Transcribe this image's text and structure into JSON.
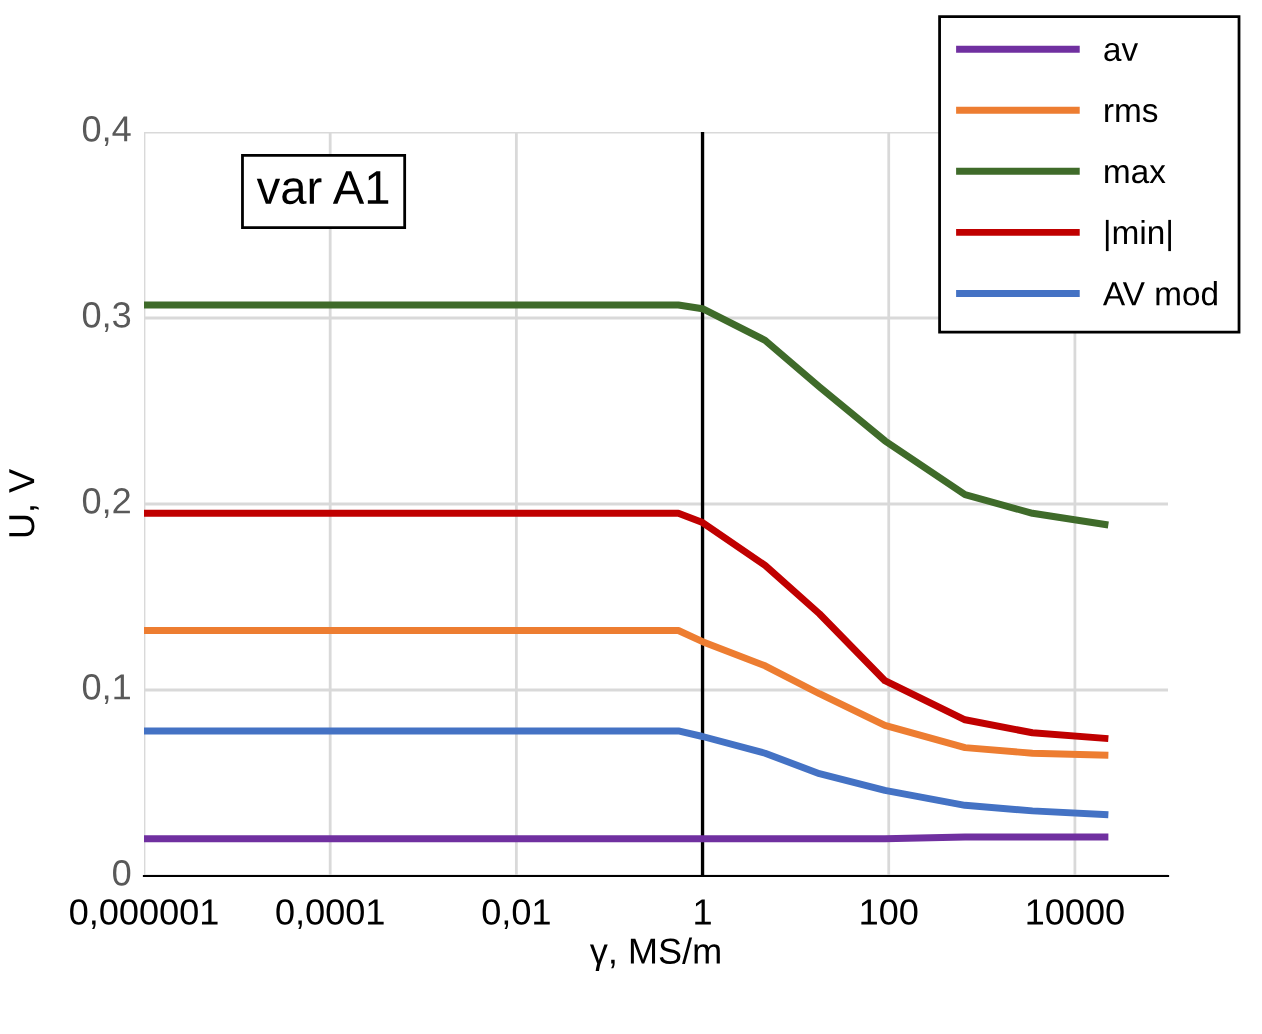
{
  "chart_data": {
    "type": "line",
    "xlabel": "γ, MS/m",
    "ylabel": "U, V",
    "annotations": [
      "var A1"
    ],
    "log": "x",
    "xlim": [
      1e-06,
      100000
    ],
    "ylim": [
      0,
      0.4
    ],
    "xticks": [
      {
        "value": 1e-06,
        "label": "0,000001"
      },
      {
        "value": 0.0001,
        "label": "0,0001"
      },
      {
        "value": 0.01,
        "label": "0,01"
      },
      1,
      100,
      10000
    ],
    "yticks": [
      0,
      {
        "value": 0.1,
        "label": "0,1"
      },
      {
        "value": 0.2,
        "label": "0,2"
      },
      {
        "value": 0.3,
        "label": "0,3"
      },
      {
        "value": 0.4,
        "label": "0,4"
      }
    ],
    "ref_lines": [
      {
        "axis": "x",
        "value": 1,
        "color": "#000000"
      }
    ],
    "grid": true,
    "legend": "top right",
    "marker": "none",
    "line_style": "solid",
    "x": [
      1e-06,
      0.1,
      0.55,
      1,
      4.7,
      18,
      91,
      660,
      3500,
      21000
    ],
    "series": [
      {
        "name": "av",
        "color": "#7030a0",
        "values": [
          0.02,
          0.02,
          0.02,
          0.02,
          0.02,
          0.02,
          0.02,
          0.021,
          0.021,
          0.021
        ]
      },
      {
        "name": "rms",
        "color": "#ed7d31",
        "values": [
          0.132,
          0.132,
          0.132,
          0.126,
          0.113,
          0.098,
          0.081,
          0.069,
          0.066,
          0.065
        ]
      },
      {
        "name": "max",
        "color": "#3f6b2a",
        "values": [
          0.307,
          0.307,
          0.307,
          0.305,
          0.288,
          0.263,
          0.234,
          0.205,
          0.195,
          0.189
        ]
      },
      {
        "name": "|min|",
        "color": "#c00000",
        "values": [
          0.195,
          0.195,
          0.195,
          0.19,
          0.167,
          0.141,
          0.105,
          0.084,
          0.077,
          0.074
        ]
      },
      {
        "name": "AV mod",
        "color": "#4472c4",
        "values": [
          0.078,
          0.078,
          0.078,
          0.075,
          0.066,
          0.055,
          0.046,
          0.038,
          0.035,
          0.033
        ]
      }
    ]
  }
}
